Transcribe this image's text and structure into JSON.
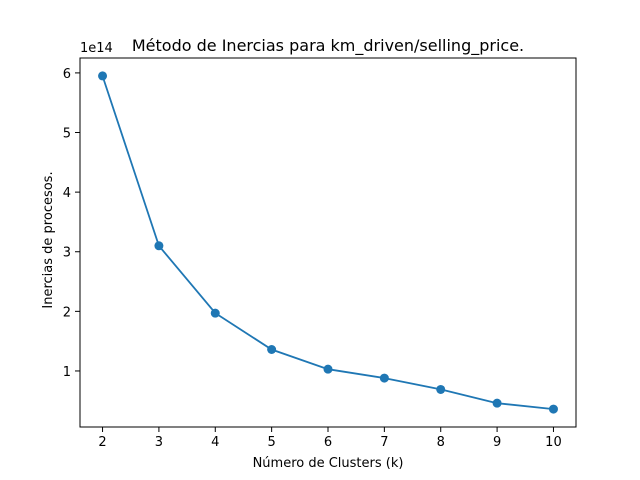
{
  "chart_data": {
    "type": "line",
    "title": "Método de Inercias para km_driven/selling_price.",
    "xlabel": "Número de Clusters (k)",
    "ylabel": "Inercias de procesos.",
    "y_offset_label": "1e14",
    "x": [
      2,
      3,
      4,
      5,
      6,
      7,
      8,
      9,
      10
    ],
    "series": [
      {
        "values": [
          5.95,
          3.1,
          1.97,
          1.36,
          1.03,
          0.88,
          0.69,
          0.46,
          0.36
        ],
        "color": "#1f77b4",
        "marker": "circle"
      }
    ],
    "xlim": [
      1.6,
      10.4
    ],
    "ylim": [
      0.06,
      6.25
    ],
    "x_ticks": [
      "2",
      "3",
      "4",
      "5",
      "6",
      "7",
      "8",
      "9",
      "10"
    ],
    "y_ticks": [
      "1",
      "2",
      "3",
      "4",
      "5",
      "6"
    ],
    "grid": false,
    "legend": "none"
  }
}
